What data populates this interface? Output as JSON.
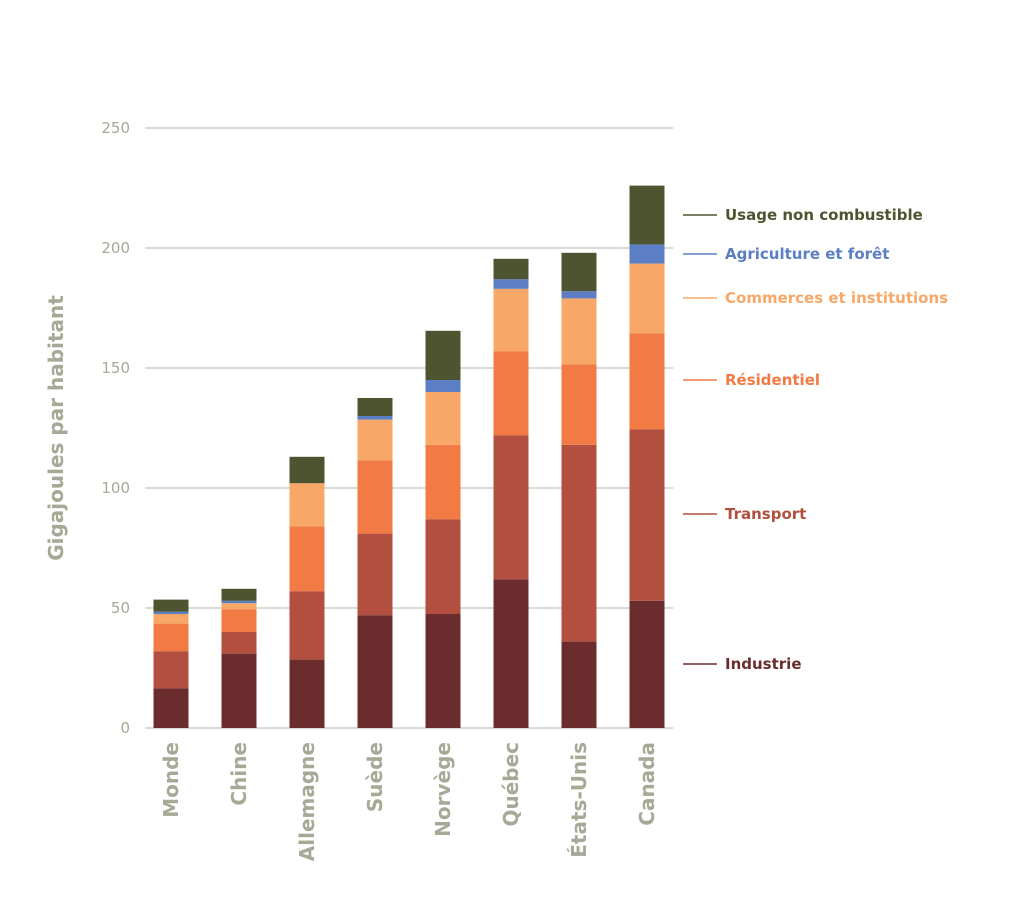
{
  "chart_data": {
    "type": "bar",
    "stacked": true,
    "title": "",
    "xlabel": "",
    "ylabel": "Gigajoules par habitant",
    "ylim": [
      0,
      250
    ],
    "yticks": [
      0,
      50,
      100,
      150,
      200,
      250
    ],
    "grid": true,
    "legend_position": "right",
    "categories": [
      "Monde",
      "Chine",
      "Allemagne",
      "Suède",
      "Norvège",
      "Québec",
      "États-Unis",
      "Canada"
    ],
    "series": [
      {
        "name": "Industrie",
        "color": "#6b2c2e",
        "values": [
          16.5,
          31,
          28.5,
          47,
          47.5,
          62,
          36,
          53
        ]
      },
      {
        "name": "Transport",
        "color": "#b34f3e",
        "values": [
          15.5,
          9,
          28.5,
          34,
          39.5,
          60,
          82,
          71.5
        ]
      },
      {
        "name": "Résidentiel",
        "color": "#f27a45",
        "values": [
          11.5,
          9.5,
          27,
          30.5,
          31,
          35,
          33.5,
          40
        ]
      },
      {
        "name": "Commerces et institutions",
        "color": "#f7a868",
        "values": [
          4,
          2.5,
          18,
          17,
          22,
          26,
          27.5,
          29
        ]
      },
      {
        "name": "Agriculture et forêt",
        "color": "#5b7ec4",
        "values": [
          1,
          1,
          0,
          1.5,
          5,
          4,
          3,
          8
        ]
      },
      {
        "name": "Usage non combustible",
        "color": "#4f5430",
        "values": [
          5,
          5,
          11,
          7.5,
          20.5,
          8.5,
          16,
          24.5
        ]
      }
    ],
    "legend_order": [
      "Usage non combustible",
      "Agriculture et forêt",
      "Commerces et institutions",
      "Résidentiel",
      "Transport",
      "Industrie"
    ],
    "text_color": "#a6a996",
    "grid_color": "#b5b7a8"
  }
}
